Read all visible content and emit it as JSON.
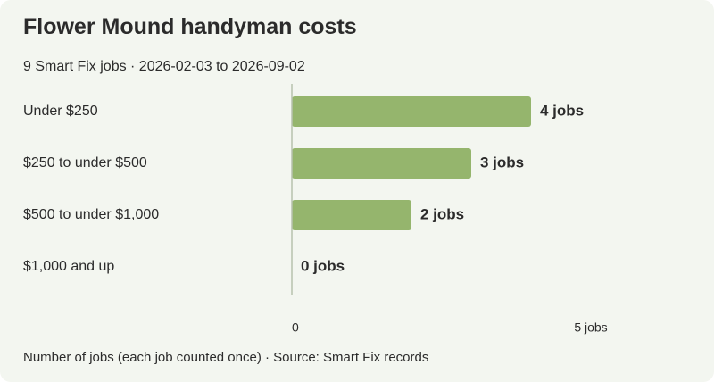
{
  "title": "Flower Mound handyman costs",
  "subtitle": "9 Smart Fix jobs · 2026-02-03 to 2026-09-02",
  "footnote": "Number of jobs (each job counted once) · Source: Smart Fix records",
  "colors": {
    "background": "#f3f6f0",
    "bar": "#95b56d",
    "axis": "#b8c2ae",
    "text": "#2b2b2b"
  },
  "chart_data": {
    "type": "bar",
    "orientation": "horizontal",
    "categories": [
      "Under $250",
      "$250 to under $500",
      "$500 to under $1,000",
      "$1,000 and up"
    ],
    "values": [
      4,
      3,
      2,
      0
    ],
    "value_labels": [
      "4 jobs",
      "3 jobs",
      "2 jobs",
      "0 jobs"
    ],
    "xlim": [
      0,
      5
    ],
    "x_ticks": [
      {
        "value": 0,
        "label": "0"
      },
      {
        "value": 5,
        "label": "5 jobs"
      }
    ],
    "grid": false,
    "legend": "none"
  }
}
